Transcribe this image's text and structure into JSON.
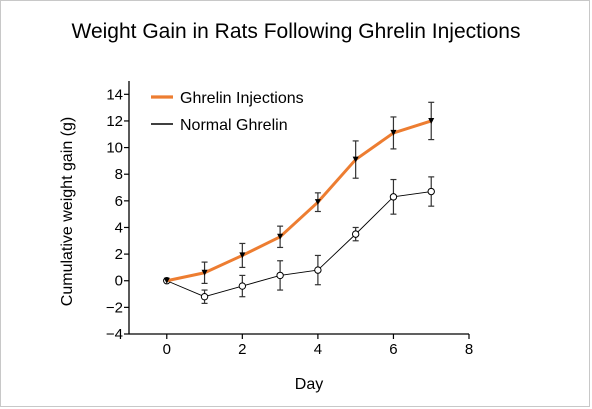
{
  "colors": {
    "ghrelin_injections": "#ed7d31",
    "normal_ghrelin": "#000000",
    "axis": "#000000",
    "error_bar": "#333333"
  },
  "chart_data": {
    "type": "line",
    "title": "Weight Gain in Rats Following Ghrelin Injections",
    "xlabel": "Day",
    "ylabel": "Cumulative weight gain (g)",
    "xlim": [
      -1,
      8
    ],
    "ylim": [
      -4,
      15
    ],
    "xticks": [
      "0",
      "2",
      "4",
      "6",
      "8"
    ],
    "yticks": [
      "−4",
      "−2",
      "0",
      "2",
      "4",
      "6",
      "8",
      "10",
      "12",
      "14"
    ],
    "xtick_values": [
      0,
      2,
      4,
      6,
      8
    ],
    "ytick_values": [
      -4,
      -2,
      0,
      2,
      4,
      6,
      8,
      10,
      12,
      14
    ],
    "legend_position": "top-left",
    "grid": false,
    "series": [
      {
        "name": "Ghrelin Injections",
        "marker": "triangle-down",
        "x": [
          0,
          1,
          2,
          3,
          4,
          5,
          6,
          7
        ],
        "y": [
          0,
          0.6,
          1.9,
          3.3,
          5.9,
          9.1,
          11.1,
          12.0
        ],
        "err": [
          0,
          0.8,
          0.9,
          0.8,
          0.7,
          1.4,
          1.2,
          1.4
        ]
      },
      {
        "name": "Normal Ghrelin",
        "marker": "circle-open",
        "x": [
          0,
          1,
          2,
          3,
          4,
          5,
          6,
          7
        ],
        "y": [
          0,
          -1.2,
          -0.4,
          0.4,
          0.8,
          3.5,
          6.3,
          6.7
        ],
        "err": [
          0,
          0.5,
          0.8,
          1.1,
          1.1,
          0.5,
          1.3,
          1.1
        ]
      }
    ]
  }
}
